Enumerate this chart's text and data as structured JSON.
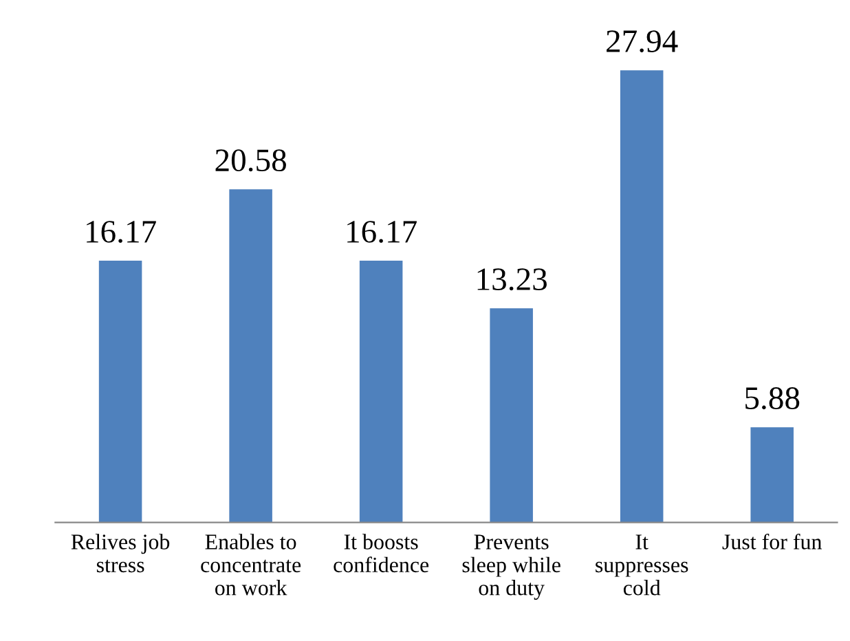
{
  "chart_data": {
    "type": "bar",
    "categories": [
      "Relives job\nstress",
      "Enables to\nconcentrate\non work",
      "It boosts\nconfidence",
      "Prevents\nsleep while\non duty",
      "It\nsuppresses\ncold",
      "Just for fun"
    ],
    "values": [
      16.17,
      20.58,
      16.17,
      13.23,
      27.94,
      5.88
    ],
    "color": "#4f81bd",
    "data_labels": true,
    "grid": false,
    "legend": false
  }
}
